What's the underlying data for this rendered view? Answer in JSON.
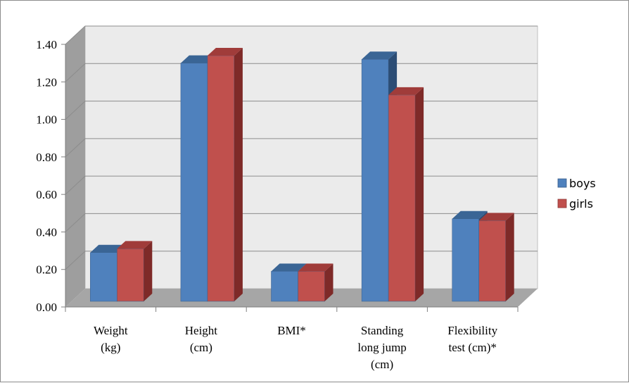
{
  "chart_data": {
    "type": "bar",
    "categories": [
      [
        "Weight",
        "(kg)"
      ],
      [
        "Height",
        "(cm)"
      ],
      [
        "BMI*"
      ],
      [
        "Standing",
        "long jump",
        "(cm)"
      ],
      [
        "Flexibility",
        "test (cm)*"
      ]
    ],
    "series": [
      {
        "name": "boys",
        "values": [
          0.26,
          1.27,
          0.16,
          1.29,
          0.44
        ]
      },
      {
        "name": "girls",
        "values": [
          0.28,
          1.31,
          0.16,
          1.1,
          0.43
        ]
      }
    ],
    "ylim": [
      0,
      1.4
    ],
    "yticks": [
      "0.00",
      "0.20",
      "0.40",
      "0.60",
      "0.80",
      "1.00",
      "1.20",
      "1.40"
    ],
    "title": "",
    "xlabel": "",
    "ylabel": "",
    "grid": true,
    "legend_position": "right",
    "colors": {
      "boys_front": "#4f81bd",
      "boys_side": "#2c4d75",
      "boys_top": "#3a6595",
      "girls_front": "#c0504d",
      "girls_side": "#7e2a28",
      "girls_top": "#a03c3a",
      "wall": "#ebebeb",
      "side_wall": "#9e9e9e",
      "floor": "#a6a6a6",
      "gridline": "#8c8c8c"
    }
  }
}
